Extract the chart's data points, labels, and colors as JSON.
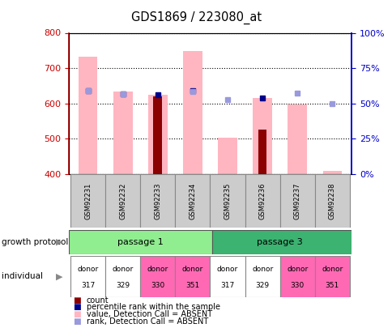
{
  "title": "GDS1869 / 223080_at",
  "samples": [
    "GSM92231",
    "GSM92232",
    "GSM92233",
    "GSM92234",
    "GSM92235",
    "GSM92236",
    "GSM92237",
    "GSM92238"
  ],
  "count_values": [
    null,
    null,
    620,
    null,
    null,
    525,
    null,
    null
  ],
  "count_bottom": [
    400,
    400,
    400,
    400,
    400,
    400,
    400,
    400
  ],
  "pink_top": [
    733,
    633,
    625,
    748,
    502,
    615,
    597,
    408
  ],
  "pink_bottom": [
    400,
    400,
    400,
    400,
    400,
    400,
    400,
    400
  ],
  "blue_square_y": [
    635,
    627,
    625,
    635,
    null,
    615,
    null,
    null
  ],
  "light_blue_square_y": [
    635,
    626,
    null,
    633,
    610,
    null,
    628,
    600
  ],
  "ylim": [
    400,
    800
  ],
  "y_ticks": [
    400,
    500,
    600,
    700,
    800
  ],
  "y_right_ticks": [
    0,
    25,
    50,
    75,
    100
  ],
  "passage1_color": "#90EE90",
  "passage3_color": "#3CB371",
  "individual": [
    "317",
    "329",
    "330",
    "351",
    "317",
    "329",
    "330",
    "351"
  ],
  "individual_colors": [
    "white",
    "white",
    "#FF69B4",
    "#FF69B4",
    "white",
    "white",
    "#FF69B4",
    "#FF69B4"
  ],
  "count_color": "#8B0000",
  "pink_bar_color": "#FFB6C1",
  "blue_square_color": "#00008B",
  "light_blue_color": "#9999DD",
  "axis_left_color": "#CC0000",
  "axis_right_color": "#0000CC"
}
